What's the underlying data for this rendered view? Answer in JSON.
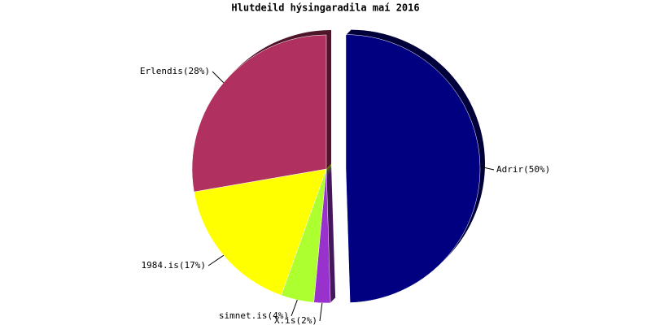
{
  "chart_data": {
    "type": "pie",
    "title": "Hlutdeild hýsingaradila maí 2016",
    "labels": [
      "Adrir(50%)",
      "X.is(2%)",
      "simnet.is(4%)",
      "1984.is(17%)",
      "Erlendis(28%)"
    ],
    "values": [
      50,
      2,
      4,
      17,
      28
    ],
    "colors": [
      "#000080",
      "#9932cc",
      "#adff2f",
      "#ffff00",
      "#b03060"
    ]
  }
}
